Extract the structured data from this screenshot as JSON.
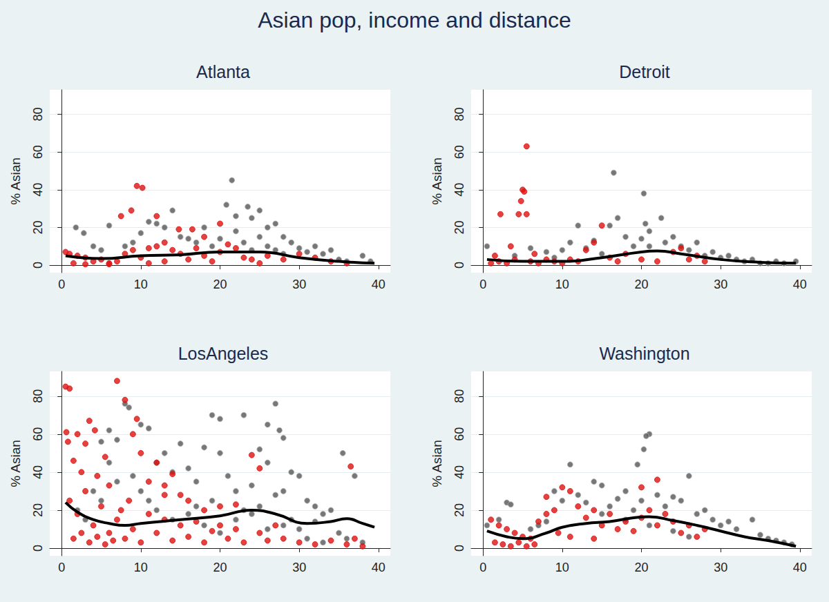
{
  "title": "Asian pop, income and distance",
  "chart_data": [
    {
      "type": "scatter",
      "title": "Atlanta",
      "y_label": "% Asian",
      "xlim": [
        -1.5,
        41.5
      ],
      "xticks": [
        0,
        10,
        20,
        30,
        40
      ],
      "ylim": [
        -4,
        93
      ],
      "yticks": [
        0,
        20,
        40,
        60,
        80
      ],
      "grid": true,
      "series": [
        {
          "type": "scatter",
          "color": "#555555",
          "marker": "circle",
          "x": [
            21.5,
            20.8,
            23.5,
            25,
            14,
            11,
            6,
            1.8,
            2.8,
            12,
            13,
            18,
            22,
            24,
            26,
            27,
            28,
            29,
            15,
            17,
            19,
            20,
            22,
            23,
            25,
            26,
            27,
            30,
            31,
            32,
            33,
            35,
            36,
            38,
            39,
            9,
            8,
            5,
            4,
            10,
            16,
            24,
            28,
            34
          ],
          "values": [
            45,
            32,
            31,
            29,
            29,
            23,
            21,
            20,
            17,
            22,
            20,
            20,
            26,
            25,
            20,
            22,
            15,
            12,
            15,
            12,
            10,
            14,
            18,
            12,
            15,
            10,
            8,
            9,
            7,
            10,
            6,
            3,
            2,
            5,
            2,
            12,
            10,
            8,
            10,
            17,
            14,
            8,
            6,
            8
          ]
        },
        {
          "type": "scatter",
          "color": "#dd1111",
          "marker": "circle",
          "x": [
            9.5,
            10.2,
            8.8,
            12,
            7.5,
            14.8,
            16.5,
            18,
            20,
            21,
            0.5,
            1,
            2,
            3,
            4,
            5,
            6,
            7,
            8,
            9,
            10,
            11,
            12,
            13,
            14,
            15,
            16,
            17,
            18,
            19,
            20,
            22,
            23,
            24,
            25,
            26,
            28,
            30,
            32,
            34,
            36,
            1.5,
            3,
            6,
            11,
            13
          ],
          "values": [
            42,
            41,
            29,
            26,
            26,
            19,
            19,
            15,
            22,
            11,
            7,
            6,
            5,
            4,
            2,
            3,
            1,
            2,
            6,
            8,
            4,
            9,
            10,
            12,
            8,
            6,
            3,
            9,
            5,
            2,
            7,
            9,
            4,
            3,
            1,
            5,
            3,
            6,
            4,
            2,
            1,
            1,
            0.5,
            0.5,
            1,
            2
          ]
        },
        {
          "type": "line",
          "color": "#000000",
          "marker": "none",
          "line_style": "solid",
          "x": [
            0.5,
            5,
            10,
            15,
            20,
            25,
            30,
            35,
            39.5
          ],
          "values": [
            5,
            3.5,
            5,
            5.5,
            7,
            7,
            4,
            2,
            1
          ]
        }
      ]
    },
    {
      "type": "scatter",
      "title": "Detroit",
      "y_label": "% Asian",
      "xlim": [
        -1.5,
        41.5
      ],
      "xticks": [
        0,
        10,
        20,
        30,
        40
      ],
      "ylim": [
        -4,
        93
      ],
      "yticks": [
        0,
        20,
        40,
        60,
        80
      ],
      "grid": true,
      "series": [
        {
          "type": "scatter",
          "color": "#555555",
          "marker": "circle",
          "x": [
            16.5,
            20.3,
            20.5,
            21,
            22.5,
            12,
            17,
            16,
            18,
            19,
            20,
            21,
            23,
            24,
            25,
            26,
            27,
            28,
            29,
            30,
            31,
            32,
            33,
            34,
            35,
            36,
            37,
            38,
            39.5,
            0.5,
            10,
            11,
            13,
            14,
            15,
            8,
            9,
            4,
            6
          ],
          "values": [
            49,
            38,
            22,
            18,
            25,
            21,
            25,
            21,
            15,
            10,
            14,
            10,
            12,
            15,
            10,
            8,
            12,
            5,
            7,
            4,
            5,
            3,
            2,
            3,
            1,
            1,
            2,
            1,
            2,
            10,
            8,
            12,
            9,
            13,
            6,
            7,
            4,
            5,
            9
          ]
        },
        {
          "type": "scatter",
          "color": "#dd1111",
          "marker": "circle",
          "x": [
            5.5,
            5,
            5.2,
            4.8,
            4.5,
            5.5,
            2.2,
            3.5,
            1,
            2,
            3,
            4,
            6,
            7,
            8,
            9,
            10,
            11,
            12,
            13,
            14,
            15,
            16,
            17,
            18,
            20,
            22,
            24,
            25,
            26,
            27,
            28,
            1.5,
            6.5
          ],
          "values": [
            63,
            40,
            39,
            34,
            27,
            27,
            27,
            10,
            1,
            2,
            1,
            3,
            2,
            1,
            3,
            2,
            1,
            3,
            2,
            8,
            12,
            21,
            4,
            2,
            6,
            3,
            2,
            7,
            9,
            3,
            5,
            2,
            5,
            6
          ]
        },
        {
          "type": "line",
          "color": "#000000",
          "marker": "none",
          "line_style": "solid",
          "x": [
            0.5,
            5,
            10,
            15,
            20,
            22,
            25,
            30,
            35,
            39.5
          ],
          "values": [
            3,
            2,
            2,
            4,
            7,
            7.5,
            6,
            3,
            1.5,
            1
          ]
        }
      ]
    },
    {
      "type": "scatter",
      "title": "LosAngeles",
      "y_label": "% Asian",
      "xlim": [
        -1.5,
        41.5
      ],
      "xticks": [
        0,
        10,
        20,
        30,
        40
      ],
      "ylim": [
        -4,
        93
      ],
      "yticks": [
        0,
        20,
        40,
        60,
        80
      ],
      "grid": true,
      "series": [
        {
          "type": "scatter",
          "color": "#555555",
          "marker": "circle",
          "x": [
            8,
            8.5,
            27,
            10,
            11,
            6,
            7,
            5,
            19,
            20,
            23,
            26,
            27.5,
            28,
            15,
            18,
            20,
            25,
            26,
            29,
            30,
            35.5,
            37,
            12,
            13,
            14,
            16,
            17,
            21,
            22,
            24,
            27,
            28,
            31,
            32,
            33,
            34,
            35,
            36,
            38,
            9,
            10,
            11,
            12,
            14,
            16,
            18,
            20,
            22,
            24,
            26,
            28,
            30,
            31,
            32,
            33,
            2,
            3,
            4,
            5,
            6,
            7,
            17,
            19,
            23,
            25,
            29
          ],
          "values": [
            76,
            74,
            76,
            65,
            63,
            62,
            57,
            56,
            70,
            68,
            70,
            65,
            62,
            58,
            55,
            53,
            50,
            52,
            45,
            40,
            38,
            50,
            38,
            45,
            50,
            40,
            42,
            35,
            38,
            30,
            33,
            28,
            30,
            25,
            22,
            18,
            20,
            8,
            5,
            3,
            38,
            30,
            25,
            20,
            15,
            18,
            12,
            8,
            15,
            18,
            10,
            12,
            10,
            5,
            14,
            3,
            20,
            15,
            30,
            25,
            45,
            35,
            22,
            25,
            20,
            22,
            15
          ]
        },
        {
          "type": "scatter",
          "color": "#dd1111",
          "marker": "circle",
          "x": [
            0.5,
            1,
            7,
            8,
            0.6,
            0.8,
            3.5,
            4.2,
            2,
            3,
            5.5,
            1.5,
            2.5,
            4.5,
            6,
            9,
            9.5,
            10,
            12,
            14,
            13,
            15,
            16,
            18,
            20,
            22,
            24,
            25,
            36.5,
            37,
            1,
            2,
            3,
            4,
            5,
            6,
            7,
            8,
            9,
            10,
            11,
            12,
            13,
            14,
            15,
            16,
            17,
            18,
            19,
            20,
            21,
            22,
            23,
            25,
            26,
            27,
            28,
            30,
            32,
            34,
            36,
            38,
            1.5,
            2.5,
            3.5,
            4.5,
            5.5,
            6.5,
            7.5,
            8.5,
            11,
            13
          ],
          "values": [
            85,
            84,
            88,
            78,
            61,
            56,
            67,
            62,
            60,
            55,
            48,
            46,
            40,
            38,
            33,
            60,
            68,
            50,
            45,
            39,
            33,
            28,
            25,
            20,
            22,
            23,
            49,
            42,
            43,
            5,
            25,
            18,
            30,
            12,
            22,
            8,
            15,
            5,
            10,
            3,
            18,
            8,
            15,
            4,
            12,
            6,
            14,
            3,
            9,
            12,
            5,
            10,
            3,
            8,
            4,
            12,
            5,
            3,
            2,
            4,
            2,
            1,
            5,
            8,
            3,
            6,
            2,
            4,
            20,
            25,
            35,
            28
          ]
        },
        {
          "type": "line",
          "color": "#000000",
          "marker": "none",
          "line_style": "solid",
          "x": [
            0.5,
            2,
            4,
            6,
            8,
            10,
            15,
            20,
            24,
            27,
            31,
            34,
            36,
            38,
            39.5
          ],
          "values": [
            24,
            19,
            15,
            13,
            12,
            13,
            15,
            17,
            20,
            18,
            13,
            14,
            15.5,
            13,
            11
          ]
        }
      ]
    },
    {
      "type": "scatter",
      "title": "Washington",
      "y_label": "% Asian",
      "xlim": [
        -1.5,
        41.5
      ],
      "xticks": [
        0,
        10,
        20,
        30,
        40
      ],
      "ylim": [
        -4,
        93
      ],
      "yticks": [
        0,
        20,
        40,
        60,
        80
      ],
      "grid": true,
      "series": [
        {
          "type": "scatter",
          "color": "#555555",
          "marker": "circle",
          "x": [
            21,
            20.6,
            20.3,
            19.5,
            11,
            26,
            14,
            15,
            18,
            22,
            24,
            25,
            3,
            3.5,
            9,
            10,
            12,
            13,
            16,
            17,
            19,
            20,
            23,
            27,
            28,
            29,
            30,
            31,
            32,
            34,
            35,
            36,
            37,
            38,
            39,
            0.5,
            2,
            6,
            7,
            8,
            15,
            18,
            21,
            24,
            26
          ],
          "values": [
            60,
            59,
            52,
            44,
            44,
            38,
            35,
            33,
            30,
            28,
            27,
            25,
            24,
            23,
            30,
            25,
            28,
            24,
            22,
            26,
            20,
            25,
            22,
            18,
            20,
            15,
            12,
            14,
            10,
            15,
            7,
            5,
            4,
            3,
            2,
            12,
            15,
            10,
            12,
            14,
            18,
            15,
            12,
            9,
            6
          ]
        },
        {
          "type": "scatter",
          "color": "#dd1111",
          "marker": "circle",
          "x": [
            22,
            20,
            10,
            11,
            8,
            9,
            1,
            2,
            3,
            4,
            5,
            6,
            7,
            8,
            12,
            13,
            14,
            15,
            16,
            17,
            18,
            19,
            20,
            21,
            22,
            23,
            24,
            25,
            26,
            27,
            28,
            1.5,
            2.5,
            3.5,
            4.5,
            5.5,
            6.5,
            9.5,
            11,
            14
          ],
          "values": [
            36,
            32,
            32,
            30,
            27,
            20,
            15,
            12,
            10,
            8,
            6,
            5,
            14,
            18,
            22,
            16,
            20,
            12,
            18,
            10,
            14,
            9,
            16,
            20,
            12,
            18,
            14,
            8,
            12,
            6,
            10,
            3,
            2,
            1,
            3,
            1,
            2,
            8,
            6,
            5
          ]
        },
        {
          "type": "line",
          "color": "#000000",
          "marker": "none",
          "line_style": "solid",
          "x": [
            0.5,
            3,
            5,
            8,
            10,
            13,
            16,
            19,
            21,
            24,
            27,
            30,
            33,
            36,
            39.5
          ],
          "values": [
            9,
            6,
            5,
            8,
            11,
            13,
            14,
            16,
            16.5,
            14.5,
            12,
            9,
            6,
            4,
            1
          ]
        }
      ]
    }
  ]
}
